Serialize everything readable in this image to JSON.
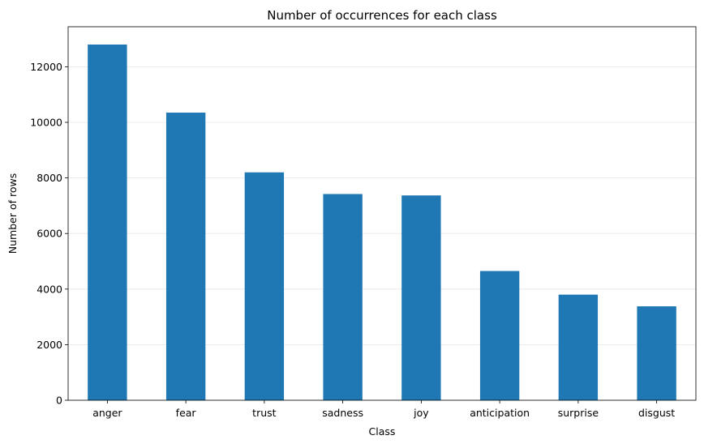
{
  "chart_data": {
    "type": "bar",
    "title": "Number of occurrences for each class",
    "xlabel": "Class",
    "ylabel": "Number of rows",
    "categories": [
      "anger",
      "fear",
      "trust",
      "sadness",
      "joy",
      "anticipation",
      "surprise",
      "disgust"
    ],
    "values": [
      12800,
      10350,
      8200,
      7420,
      7370,
      4650,
      3800,
      3380
    ],
    "ylim": [
      0,
      13440
    ],
    "yticks": [
      0,
      2000,
      4000,
      6000,
      8000,
      10000,
      12000
    ],
    "grid": "y-axis, light",
    "legend": "none",
    "bar_color": "#1f77b4"
  }
}
